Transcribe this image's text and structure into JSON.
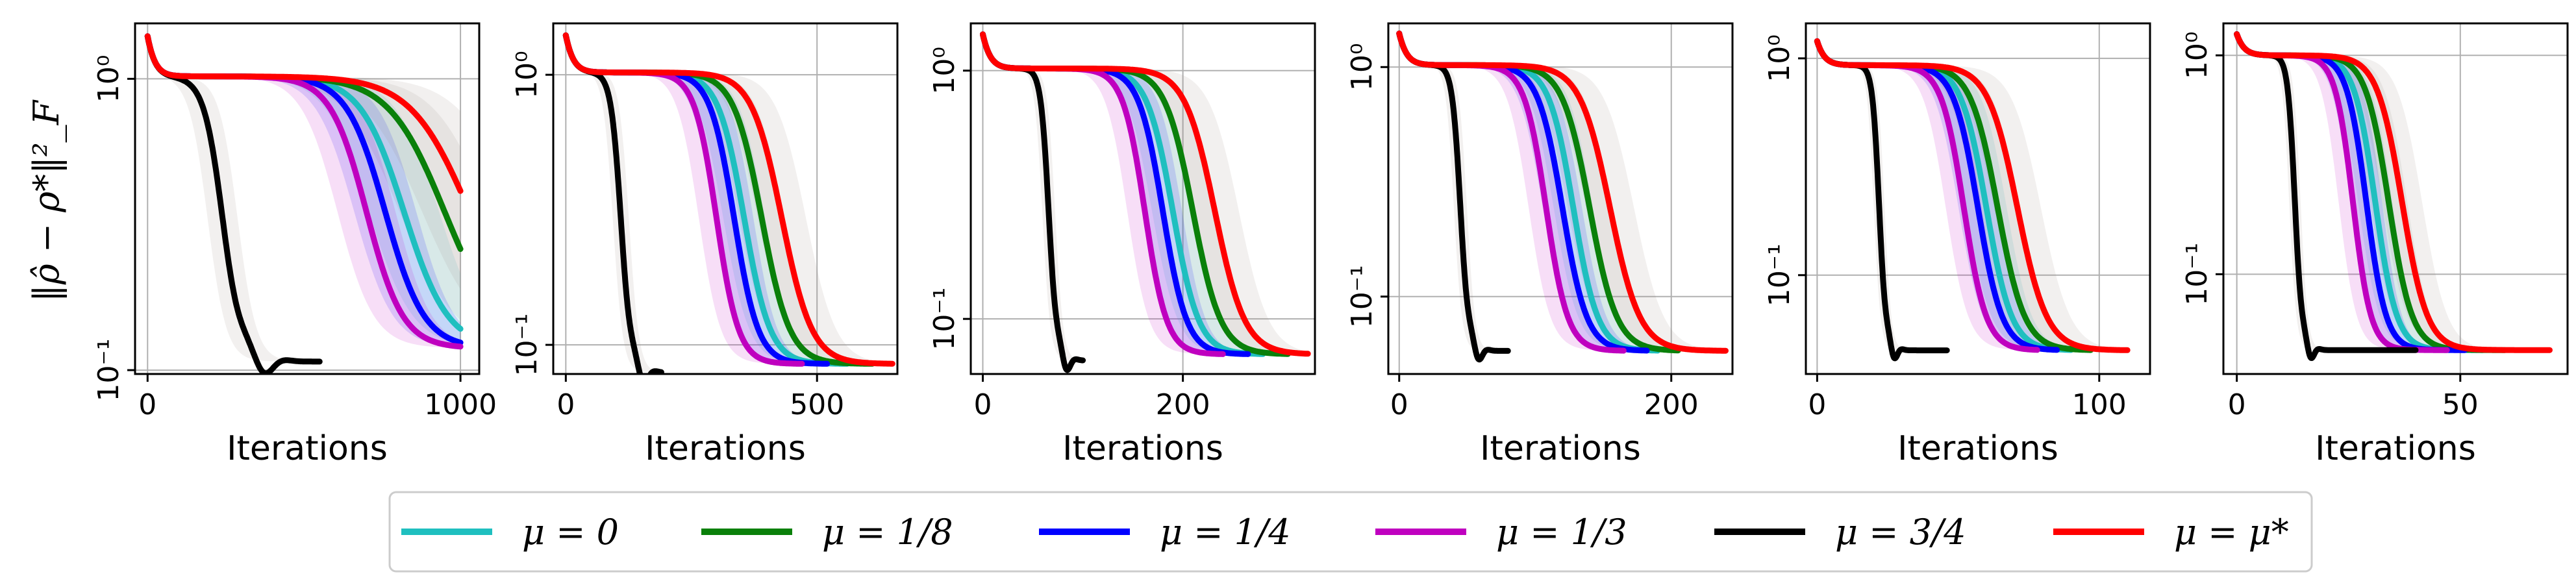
{
  "figure": {
    "ylabel": "‖ρ̂ − ρ*‖²_F",
    "xlabel": "Iterations"
  },
  "legend": [
    {
      "label": "μ = 0",
      "color": "#1fbfbf"
    },
    {
      "label": "μ = 1/8",
      "color": "#0a800a"
    },
    {
      "label": "μ = 1/4",
      "color": "#0000ff"
    },
    {
      "label": "μ = 1/3",
      "color": "#bf00bf"
    },
    {
      "label": "μ = 3/4",
      "color": "#000000"
    },
    {
      "label": "μ = μ*",
      "color": "#ff0000"
    }
  ],
  "chart_data": [
    {
      "type": "line",
      "yscale": "log",
      "xlabel": "Iterations",
      "ylabel": "‖ρ̂ − ρ*‖²_F",
      "xlim": [
        -40,
        1060
      ],
      "ylim": [
        0.097,
        1.55
      ],
      "xticks": [
        0,
        1000
      ],
      "xtick_labels": [
        "0",
        "1000"
      ],
      "yticks": [
        0.1,
        1.0
      ],
      "ytick_labels": [
        "10⁻¹",
        "10⁰"
      ],
      "grid": true,
      "start_value": 1.4,
      "plateau": 1.02,
      "series": [
        {
          "name": "μ = 0",
          "color": "#1fbfbf",
          "mid": 820,
          "width": 70,
          "final": 0.119,
          "end": 1000
        },
        {
          "name": "μ = 1/8",
          "color": "#0a800a",
          "mid": 950,
          "width": 90,
          "final": 0.119,
          "end": 1000
        },
        {
          "name": "μ = 1/4",
          "color": "#0000ff",
          "mid": 760,
          "width": 62,
          "final": 0.119,
          "end": 1000
        },
        {
          "name": "μ = 1/3",
          "color": "#bf00bf",
          "mid": 700,
          "width": 58,
          "final": 0.119,
          "end": 1000
        },
        {
          "name": "μ = 3/4",
          "color": "#000000",
          "mid": 240,
          "width": 30,
          "final": 0.107,
          "end": 550
        },
        {
          "name": "μ = μ*",
          "color": "#ff0000",
          "mid": 1030,
          "width": 95,
          "final": 0.119,
          "end": 1000
        }
      ]
    },
    {
      "type": "line",
      "yscale": "log",
      "xlabel": "Iterations",
      "xlim": [
        -25,
        660
      ],
      "ylim": [
        0.078,
        1.55
      ],
      "xticks": [
        0,
        500
      ],
      "xtick_labels": [
        "0",
        "500"
      ],
      "yticks": [
        0.1,
        1.0
      ],
      "ytick_labels": [
        "10⁻¹",
        "10⁰"
      ],
      "grid": true,
      "start_value": 1.4,
      "plateau": 1.02,
      "series": [
        {
          "name": "μ = 0",
          "color": "#1fbfbf",
          "mid": 355,
          "width": 26,
          "final": 0.085,
          "end": 560
        },
        {
          "name": "μ = 1/8",
          "color": "#0a800a",
          "mid": 390,
          "width": 28,
          "final": 0.085,
          "end": 610
        },
        {
          "name": "μ = 1/4",
          "color": "#0000ff",
          "mid": 335,
          "width": 24,
          "final": 0.085,
          "end": 520
        },
        {
          "name": "μ = 1/3",
          "color": "#bf00bf",
          "mid": 300,
          "width": 22,
          "final": 0.085,
          "end": 470
        },
        {
          "name": "μ = 3/4",
          "color": "#000000",
          "mid": 110,
          "width": 10,
          "final": 0.079,
          "end": 190
        },
        {
          "name": "μ = μ*",
          "color": "#ff0000",
          "mid": 430,
          "width": 30,
          "final": 0.085,
          "end": 650
        }
      ]
    },
    {
      "type": "line",
      "yscale": "log",
      "xlabel": "Iterations",
      "xlim": [
        -12,
        332
      ],
      "ylim": [
        0.06,
        1.55
      ],
      "xticks": [
        0,
        200
      ],
      "xtick_labels": [
        "0",
        "200"
      ],
      "yticks": [
        0.1,
        1.0
      ],
      "ytick_labels": [
        "10⁻¹",
        "10⁰"
      ],
      "grid": true,
      "start_value": 1.4,
      "plateau": 1.02,
      "series": [
        {
          "name": "μ = 0",
          "color": "#1fbfbf",
          "mid": 190,
          "width": 13,
          "final": 0.072,
          "end": 280
        },
        {
          "name": "μ = 1/8",
          "color": "#0a800a",
          "mid": 210,
          "width": 14,
          "final": 0.072,
          "end": 305
        },
        {
          "name": "μ = 1/4",
          "color": "#0000ff",
          "mid": 180,
          "width": 12,
          "final": 0.072,
          "end": 265
        },
        {
          "name": "μ = 1/3",
          "color": "#bf00bf",
          "mid": 162,
          "width": 11,
          "final": 0.072,
          "end": 240
        },
        {
          "name": "μ = 3/4",
          "color": "#000000",
          "mid": 66,
          "width": 4,
          "final": 0.068,
          "end": 100
        },
        {
          "name": "μ = μ*",
          "color": "#ff0000",
          "mid": 232,
          "width": 15,
          "final": 0.072,
          "end": 325
        }
      ]
    },
    {
      "type": "line",
      "yscale": "log",
      "xlabel": "Iterations",
      "xlim": [
        -8,
        245
      ],
      "ylim": [
        0.046,
        1.55
      ],
      "xticks": [
        0,
        200
      ],
      "xtick_labels": [
        "0",
        "200"
      ],
      "yticks": [
        0.1,
        1.0
      ],
      "ytick_labels": [
        "10⁻¹",
        "10⁰"
      ],
      "grid": true,
      "start_value": 1.4,
      "plateau": 1.02,
      "series": [
        {
          "name": "μ = 0",
          "color": "#1fbfbf",
          "mid": 128,
          "width": 9,
          "final": 0.058,
          "end": 190
        },
        {
          "name": "μ = 1/8",
          "color": "#0a800a",
          "mid": 140,
          "width": 10,
          "final": 0.058,
          "end": 205
        },
        {
          "name": "μ = 1/4",
          "color": "#0000ff",
          "mid": 120,
          "width": 9,
          "final": 0.058,
          "end": 182
        },
        {
          "name": "μ = 1/3",
          "color": "#bf00bf",
          "mid": 108,
          "width": 8,
          "final": 0.058,
          "end": 165
        },
        {
          "name": "μ = 3/4",
          "color": "#000000",
          "mid": 45,
          "width": 3,
          "final": 0.058,
          "end": 80
        },
        {
          "name": "μ = μ*",
          "color": "#ff0000",
          "mid": 155,
          "width": 11,
          "final": 0.058,
          "end": 240
        }
      ]
    },
    {
      "type": "line",
      "yscale": "log",
      "xlabel": "Iterations",
      "xlim": [
        -4,
        118
      ],
      "ylim": [
        0.035,
        1.45
      ],
      "xticks": [
        0,
        100
      ],
      "xtick_labels": [
        "0",
        "100"
      ],
      "yticks": [
        0.1,
        1.0
      ],
      "ytick_labels": [
        "10⁻¹",
        "10⁰"
      ],
      "grid": true,
      "start_value": 1.2,
      "plateau": 0.93,
      "series": [
        {
          "name": "μ = 0",
          "color": "#1fbfbf",
          "mid": 60,
          "width": 4.5,
          "final": 0.045,
          "end": 90
        },
        {
          "name": "μ = 1/8",
          "color": "#0a800a",
          "mid": 64,
          "width": 4.8,
          "final": 0.045,
          "end": 97
        },
        {
          "name": "μ = 1/4",
          "color": "#0000ff",
          "mid": 57,
          "width": 4.3,
          "final": 0.045,
          "end": 85
        },
        {
          "name": "μ = 1/3",
          "color": "#bf00bf",
          "mid": 52,
          "width": 4,
          "final": 0.045,
          "end": 78
        },
        {
          "name": "μ = 3/4",
          "color": "#000000",
          "mid": 22,
          "width": 1.2,
          "final": 0.045,
          "end": 46
        },
        {
          "name": "μ = μ*",
          "color": "#ff0000",
          "mid": 71,
          "width": 5.2,
          "final": 0.045,
          "end": 110
        }
      ]
    },
    {
      "type": "line",
      "yscale": "log",
      "xlabel": "Iterations",
      "xlim": [
        -3,
        74
      ],
      "ylim": [
        0.035,
        1.4
      ],
      "xticks": [
        0,
        50
      ],
      "xtick_labels": [
        "0",
        "50"
      ],
      "yticks": [
        0.1,
        1.0
      ],
      "ytick_labels": [
        "10⁻¹",
        "10⁰"
      ],
      "grid": true,
      "start_value": 1.25,
      "plateau": 1.0,
      "series": [
        {
          "name": "μ = 0",
          "color": "#1fbfbf",
          "mid": 31,
          "width": 2.4,
          "final": 0.045,
          "end": 55
        },
        {
          "name": "μ = 1/8",
          "color": "#0a800a",
          "mid": 34,
          "width": 2.6,
          "final": 0.045,
          "end": 60
        },
        {
          "name": "μ = 1/4",
          "color": "#0000ff",
          "mid": 29,
          "width": 2.2,
          "final": 0.045,
          "end": 51
        },
        {
          "name": "μ = 1/3",
          "color": "#bf00bf",
          "mid": 26,
          "width": 2.0,
          "final": 0.045,
          "end": 47
        },
        {
          "name": "μ = 3/4",
          "color": "#000000",
          "mid": 13,
          "width": 0.8,
          "final": 0.045,
          "end": 40
        },
        {
          "name": "μ = μ*",
          "color": "#ff0000",
          "mid": 37,
          "width": 2.8,
          "final": 0.045,
          "end": 70
        }
      ]
    }
  ]
}
